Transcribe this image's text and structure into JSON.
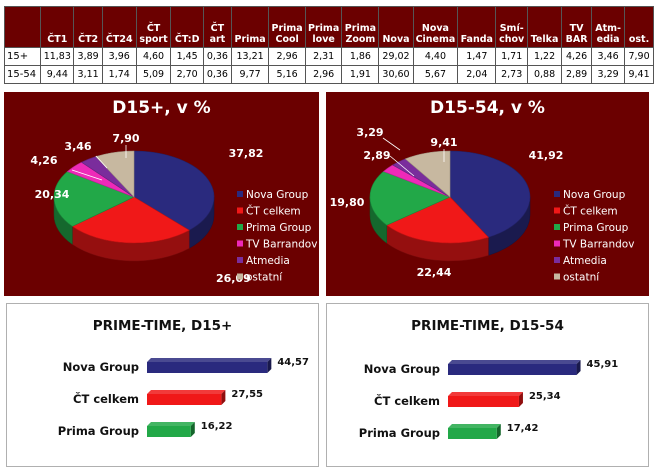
{
  "table": {
    "columns": [
      "ČT1",
      "ČT2",
      "ČT24",
      "ČT sport",
      "ČT:D",
      "ČT art",
      "Prima",
      "Prima Cool",
      "Prima love",
      "Prima Zoom",
      "Nova",
      "Nova Cinema",
      "Fanda",
      "Smí- chov",
      "Telka",
      "TV BAR",
      "Atm- edia",
      "ost."
    ],
    "rows": [
      {
        "label": "15+",
        "values": [
          "11,83",
          "3,89",
          "3,96",
          "4,60",
          "1,45",
          "0,36",
          "13,21",
          "2,96",
          "2,31",
          "1,86",
          "29,02",
          "4,40",
          "1,47",
          "1,71",
          "1,22",
          "4,26",
          "3,46",
          "7,90"
        ]
      },
      {
        "label": "15-54",
        "values": [
          "9,44",
          "3,11",
          "1,74",
          "5,09",
          "2,70",
          "0,36",
          "9,77",
          "5,16",
          "2,96",
          "1,91",
          "30,60",
          "5,67",
          "2,04",
          "2,73",
          "0,88",
          "2,89",
          "3,29",
          "9,41"
        ]
      }
    ]
  },
  "colors": {
    "panel_bg": "#6b0000",
    "nova": "#2a2a7e",
    "ct": "#f01818",
    "prima": "#22a848",
    "tvb": "#ee2ab8",
    "atmedia": "#7a2d9c",
    "ostatni": "#c7b8a0"
  },
  "chart_data": [
    {
      "type": "pie",
      "title": "D15+, v %",
      "legend_position": "right",
      "slices": [
        {
          "name": "Nova Group",
          "value": 37.82,
          "label": "37,82",
          "color": "#2a2a7e"
        },
        {
          "name": "ČT celkem",
          "value": 26.09,
          "label": "26,09",
          "color": "#f01818"
        },
        {
          "name": "Prima Group",
          "value": 20.34,
          "label": "20,34",
          "color": "#22a848"
        },
        {
          "name": "TV Barrandov",
          "value": 4.26,
          "label": "4,26",
          "color": "#ee2ab8"
        },
        {
          "name": "Atmedia",
          "value": 3.46,
          "label": "3,46",
          "color": "#7a2d9c"
        },
        {
          "name": "ostatní",
          "value": 7.9,
          "label": "7,90",
          "color": "#c7b8a0"
        }
      ]
    },
    {
      "type": "pie",
      "title": "D15-54, v %",
      "legend_position": "right",
      "slices": [
        {
          "name": "Nova Group",
          "value": 41.92,
          "label": "41,92",
          "color": "#2a2a7e"
        },
        {
          "name": "ČT celkem",
          "value": 22.44,
          "label": "22,44",
          "color": "#f01818"
        },
        {
          "name": "Prima Group",
          "value": 19.8,
          "label": "19,80",
          "color": "#22a848"
        },
        {
          "name": "TV Barrandov",
          "value": 2.89,
          "label": "2,89",
          "color": "#ee2ab8"
        },
        {
          "name": "Atmedia",
          "value": 3.29,
          "label": "3,29",
          "color": "#7a2d9c"
        },
        {
          "name": "ostatní",
          "value": 9.41,
          "label": "9,41",
          "color": "#c7b8a0"
        }
      ]
    },
    {
      "type": "bar",
      "orientation": "horizontal",
      "title": "PRIME-TIME, D15+",
      "categories": [
        "Nova Group",
        "ČT celkem",
        "Prima Group"
      ],
      "values": [
        44.57,
        27.55,
        16.22
      ],
      "value_labels": [
        "44,57",
        "27,55",
        "16,22"
      ],
      "colors": [
        "#2a2a7e",
        "#f01818",
        "#22a848"
      ],
      "xlim": [
        0,
        55
      ]
    },
    {
      "type": "bar",
      "orientation": "horizontal",
      "title": "PRIME-TIME, D15-54",
      "categories": [
        "Nova Group",
        "ČT celkem",
        "Prima Group"
      ],
      "values": [
        45.91,
        25.34,
        17.42
      ],
      "value_labels": [
        "45,91",
        "25,34",
        "17,42"
      ],
      "colors": [
        "#2a2a7e",
        "#f01818",
        "#22a848"
      ],
      "xlim": [
        0,
        55
      ]
    }
  ]
}
